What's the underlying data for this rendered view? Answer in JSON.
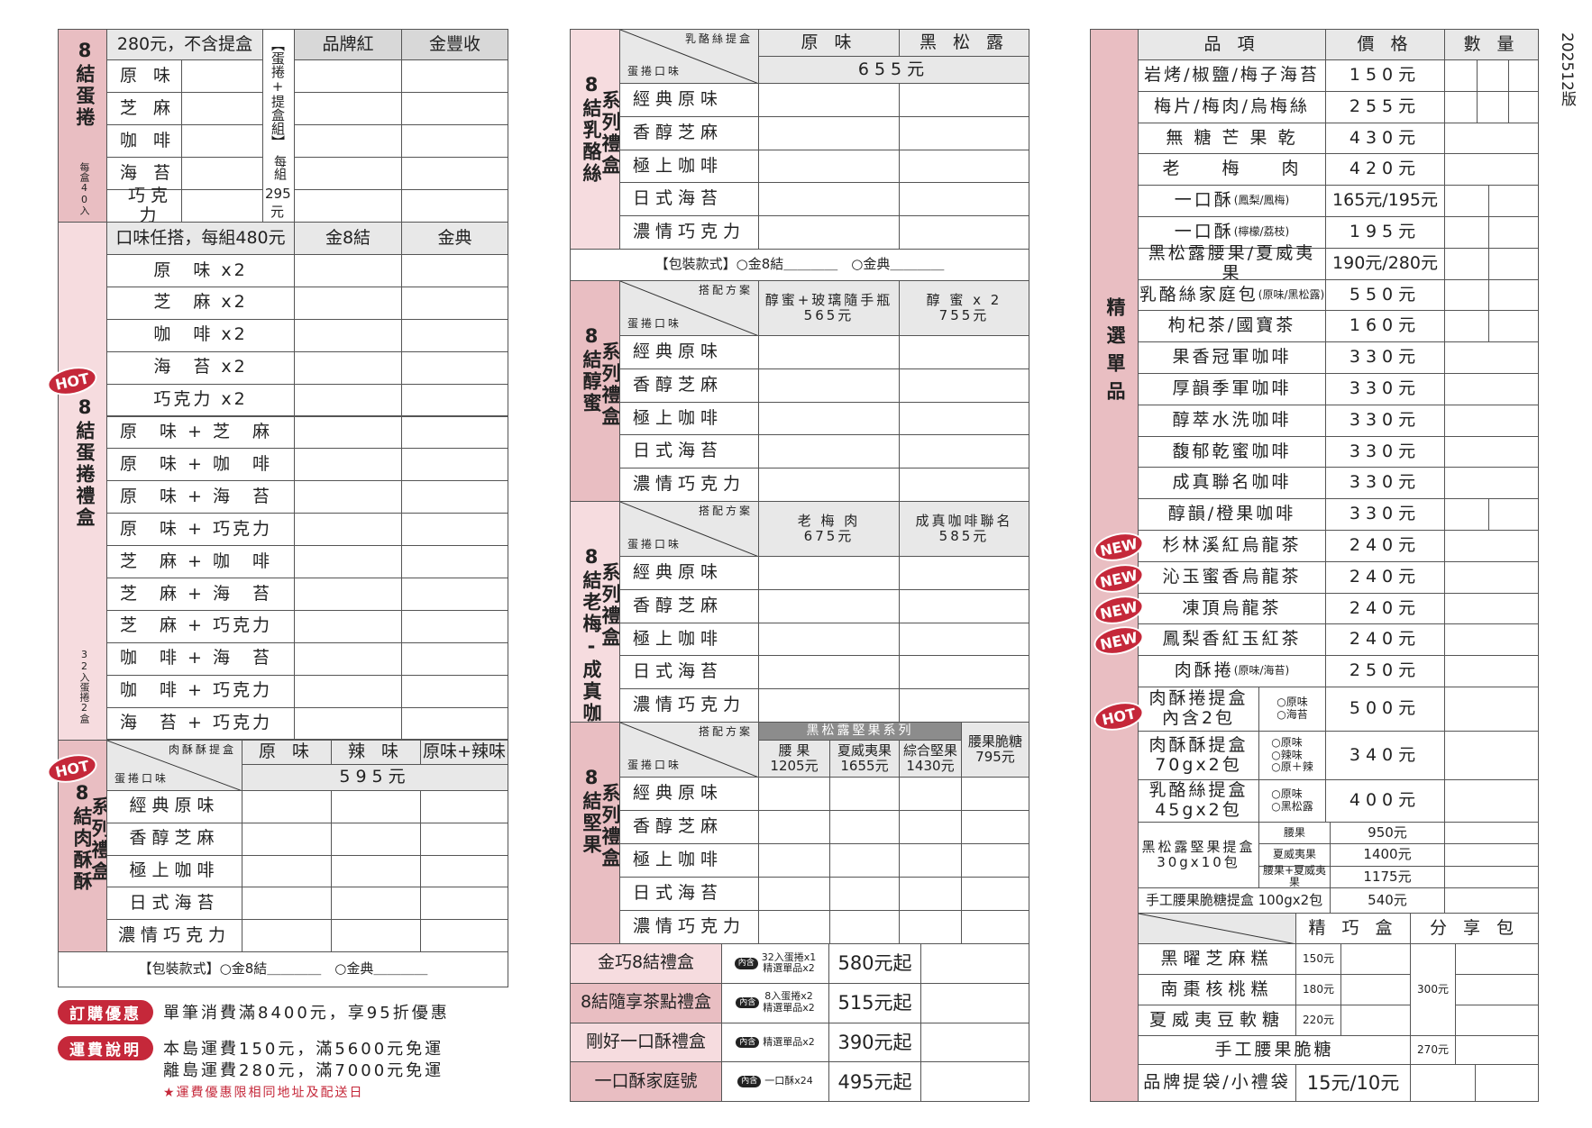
{
  "version": "202512版",
  "colors": {
    "accent_red": "#c5283a",
    "sidebar_pink": "#e9bec2",
    "sidebar_light_pink": "#f6dcdf",
    "header_gray": "#e8e8e8"
  },
  "left": {
    "egg_roll": {
      "title": "8結蛋捲",
      "note": "每盒40入",
      "header": "280元，不含提盒",
      "flavors": [
        "原 味",
        "芝 麻",
        "咖 啡",
        "海 苔",
        "巧克力"
      ],
      "set_label": "【蛋捲+提盒組】",
      "set_prefix": "每組",
      "set_price": "295",
      "set_unit": "元",
      "cols": [
        "品牌紅",
        "金豐收"
      ]
    },
    "gift_box": {
      "title": "8結蛋捲禮盒",
      "note": "32入蛋捲2盒",
      "badge": "HOT",
      "header": "口味任搭，每組480元",
      "cols": [
        "金8結",
        "金典"
      ],
      "combos": [
        "原　味 x2",
        "芝　麻 x2",
        "咖　啡 x2",
        "海　苔 x2",
        "巧克力 x2",
        "原　味 + 芝　麻",
        "原　味 + 咖　啡",
        "原　味 + 海　苔",
        "原　味 + 巧克力",
        "芝　麻 + 咖　啡",
        "芝　麻 + 海　苔",
        "芝　麻 + 巧克力",
        "咖　啡 + 海　苔",
        "咖　啡 + 巧克力",
        "海　苔 + 巧克力"
      ]
    },
    "pork": {
      "title": "8結肉酥酥",
      "sub": "系列禮盒",
      "badge": "HOT",
      "corner_top": "肉酥酥提盒",
      "corner_bottom": "蛋捲口味",
      "cols": [
        "原 味",
        "辣 味",
        "原味+辣味"
      ],
      "price": "595元",
      "flavors": [
        "經典原味",
        "香醇芝麻",
        "極上咖啡",
        "日式海苔",
        "濃情巧克力"
      ],
      "packaging": "【包裝款式】○金8結＿＿＿＿　○金典＿＿＿＿"
    },
    "notes": {
      "promo_badge": "訂購優惠",
      "promo_text": "單筆消費滿8400元，享95折優惠",
      "ship_badge": "運費說明",
      "ship_lines": [
        "本島運費150元，滿5600元免運",
        "離島運費280元，滿7000元免運"
      ],
      "ship_note": "★運費優惠限相同地址及配送日"
    }
  },
  "middle": {
    "flavors": [
      "經典原味",
      "香醇芝麻",
      "極上咖啡",
      "日式海苔",
      "濃情巧克力"
    ],
    "corner_bottom": "蛋捲口味",
    "cheese": {
      "title": "8結乳酪絲",
      "sub": "系列禮盒",
      "corner_top": "乳酪絲提盒",
      "cols": [
        "原 味",
        "黑 松 露"
      ],
      "price": "655元",
      "packaging": "【包裝款式】○金8結＿＿＿＿　○金典＿＿＿＿"
    },
    "honey": {
      "title": "8結醇蜜",
      "sub": "系列禮盒",
      "corner_top": "搭配方案",
      "cols": [
        {
          "name": "醇蜜+玻璃隨手瓶",
          "price": "565元"
        },
        {
          "name": "醇 蜜 x 2",
          "price": "755元"
        }
      ]
    },
    "plum": {
      "title": "8結老梅-成真咖啡",
      "sub": "系列禮盒",
      "corner_top": "搭配方案",
      "cols": [
        {
          "name": "老 梅 肉",
          "price": "675元"
        },
        {
          "name": "成真咖啡聯名",
          "price": "585元"
        }
      ]
    },
    "nut": {
      "title": "8結堅果",
      "sub": "系列禮盒",
      "corner_top": "搭配方案",
      "group": "黑松露堅果系列",
      "cols": [
        {
          "name": "腰 果",
          "price": "1205元"
        },
        {
          "name": "夏威夷果",
          "price": "1655元"
        },
        {
          "name": "綜合堅果",
          "price": "1430元"
        },
        {
          "name": "腰果脆糖",
          "price": "795元"
        }
      ]
    },
    "gift_sets": [
      {
        "name": "金巧8結禮盒",
        "tag": "內含",
        "contents": [
          "32入蛋捲x1",
          "精選單品x2"
        ],
        "price": "580元起"
      },
      {
        "name": "8結隨享茶點禮盒",
        "tag": "內含",
        "contents": [
          "8入蛋捲x2",
          "精選單品x2"
        ],
        "price": "515元起"
      },
      {
        "name": "剛好一口酥禮盒",
        "tag": "內含",
        "contents": [
          "精選單品x2"
        ],
        "price": "390元起"
      },
      {
        "name": "一口酥家庭號",
        "tag": "內含",
        "contents": [
          "一口酥x24"
        ],
        "price": "495元起"
      }
    ]
  },
  "right": {
    "title": "精選單品",
    "headers": [
      "品 項",
      "價 格",
      "數 量"
    ],
    "items": [
      {
        "name": "岩烤/椒鹽/梅子海苔",
        "sub": "",
        "price": "150元"
      },
      {
        "name": "梅片/梅肉/烏梅絲",
        "sub": "",
        "price": "255元"
      },
      {
        "name": "無 糖 芒 果 乾",
        "sub": "",
        "price": "430元"
      },
      {
        "name": "老　　梅　　肉",
        "sub": "",
        "price": "420元"
      },
      {
        "name": "一口酥",
        "sub": "(鳳梨/鳳梅)",
        "price": "165元/195元"
      },
      {
        "name": "一口酥",
        "sub": "(檸檬/荔枝)",
        "price": "195元"
      },
      {
        "name": "黑松露腰果/夏威夷果",
        "sub": "",
        "price": "190元/280元"
      },
      {
        "name": "乳酪絲家庭包",
        "sub": "(原味/黑松露)",
        "price": "550元"
      },
      {
        "name": "枸杞茶/國寶茶",
        "sub": "",
        "price": "160元"
      },
      {
        "name": "果香冠軍咖啡",
        "sub": "",
        "price": "330元"
      },
      {
        "name": "厚韻季軍咖啡",
        "sub": "",
        "price": "330元"
      },
      {
        "name": "醇萃水洗咖啡",
        "sub": "",
        "price": "330元"
      },
      {
        "name": "馥郁乾蜜咖啡",
        "sub": "",
        "price": "330元"
      },
      {
        "name": "成真聯名咖啡",
        "sub": "",
        "price": "330元"
      },
      {
        "name": "醇韻/橙果咖啡",
        "sub": "",
        "price": "330元"
      },
      {
        "name": "杉林溪紅烏龍茶",
        "sub": "",
        "price": "240元",
        "badge": "NEW"
      },
      {
        "name": "沁玉蜜香烏龍茶",
        "sub": "",
        "price": "240元",
        "badge": "NEW"
      },
      {
        "name": "凍頂烏龍茶",
        "sub": "",
        "price": "240元",
        "badge": "NEW"
      },
      {
        "name": "鳳梨香紅玉紅茶",
        "sub": "",
        "price": "240元",
        "badge": "NEW"
      },
      {
        "name": "肉酥捲",
        "sub": "(原味/海苔)",
        "price": "250元"
      }
    ],
    "boxes": [
      {
        "name": "肉酥捲提盒",
        "detail": "內含2包",
        "options": [
          "○原味",
          "○海苔"
        ],
        "price": "500元",
        "badge": "HOT"
      },
      {
        "name": "肉酥酥提盒",
        "detail": "70gx2包",
        "options": [
          "○原味",
          "○辣味",
          "○原＋辣"
        ],
        "price": "340元"
      },
      {
        "name": "乳酪絲提盒",
        "detail": "45gx2包",
        "options": [
          "○原味",
          "○黑松露"
        ],
        "price": "400元"
      }
    ],
    "nut_box": {
      "name": "黑松露堅果提盒",
      "detail": "30gx10包",
      "options": [
        {
          "label": "腰果",
          "price": "950元"
        },
        {
          "label": "夏威夷果",
          "price": "1400元"
        },
        {
          "label": "腰果+夏威夷果",
          "price": "1175元"
        }
      ]
    },
    "brittle_box": {
      "name": "手工腰果脆糖提盒 100gx2包",
      "price": "540元"
    },
    "cakes": {
      "cols": [
        "精 巧 盒",
        "分 享 包"
      ],
      "rows": [
        {
          "name": "黑曜芝麻糕",
          "price": "150元"
        },
        {
          "name": "南棗核桃糕",
          "price": "180元"
        },
        {
          "name": "夏威夷豆軟糖",
          "price": "220元"
        }
      ],
      "share_price": "300元"
    },
    "brittle": {
      "name": "手工腰果脆糖",
      "price": "270元"
    },
    "bag": {
      "name": "品牌提袋/小禮袋",
      "price": "15元/10元"
    }
  }
}
